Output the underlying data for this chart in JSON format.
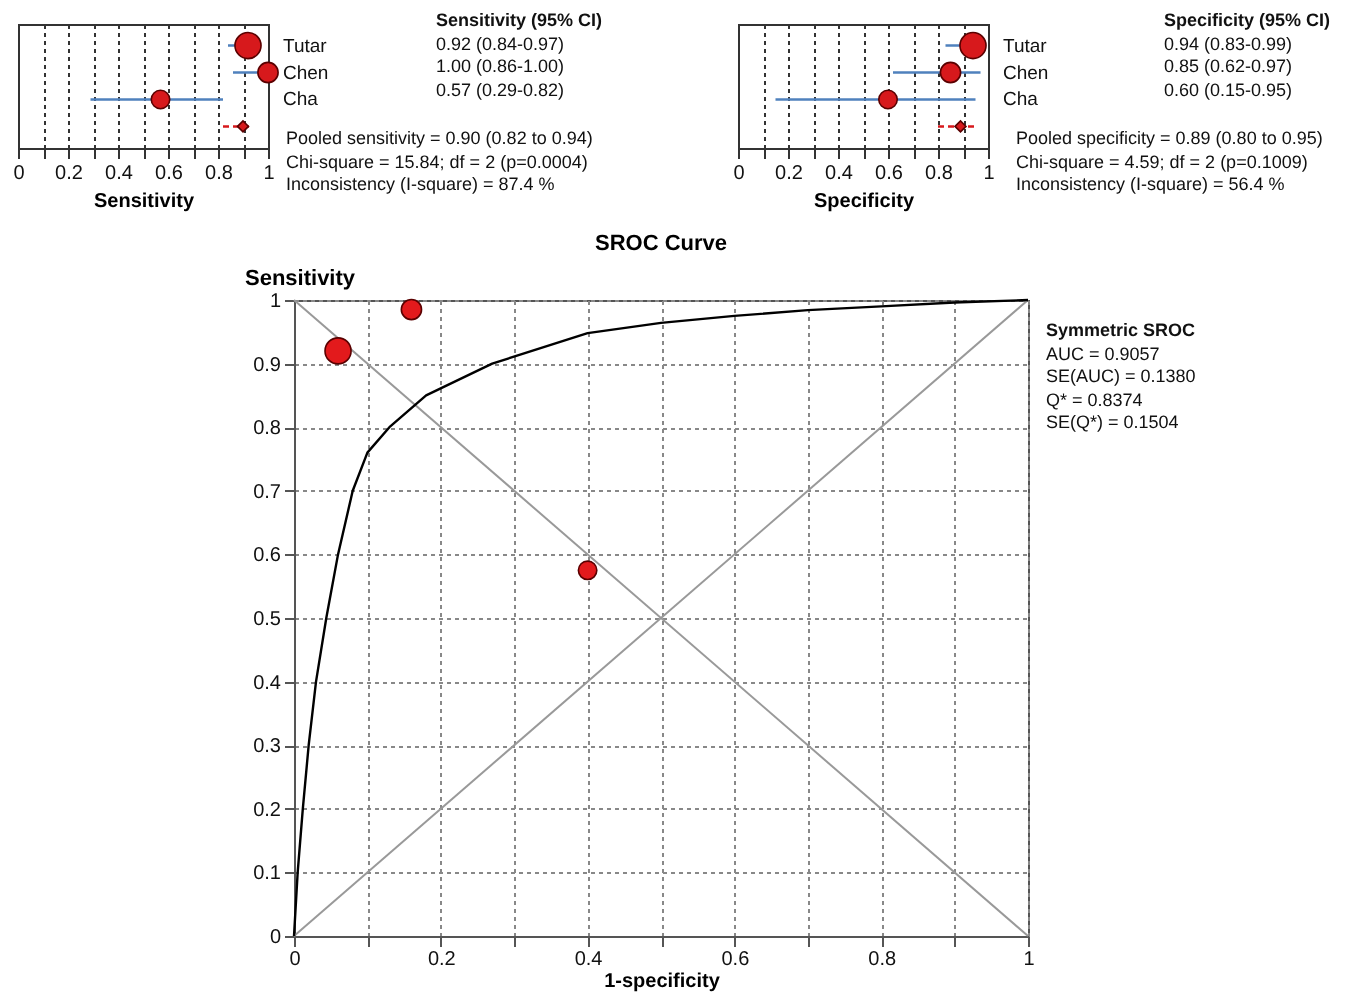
{
  "chart_data": [
    {
      "type": "bubble",
      "orientation": "horizontal",
      "xlabel": "Sensitivity",
      "categories": [
        "Tutar",
        "Chen",
        "Cha",
        null
      ],
      "xlim": [
        0,
        1
      ],
      "xticks": [
        0,
        {
          "value": 0.1,
          "label": null
        },
        0.2,
        {
          "value": 0.3,
          "label": null
        },
        0.4,
        {
          "value": 0.5,
          "label": null
        },
        0.6,
        {
          "value": 0.7,
          "label": null
        },
        0.8,
        {
          "value": 0.9,
          "label": null
        },
        1
      ],
      "grid": "x",
      "tick_labels": "x",
      "series": [
        {
          "color": "#d7191c",
          "values": [
            0.92,
            1.0,
            0.57,
            null
          ],
          "sizes": [
            1,
            0.6,
            0.5,
            null
          ],
          "errors": [
            [
              0.84,
              0.97
            ],
            [
              0.86,
              1.0
            ],
            [
              0.29,
              0.82
            ],
            null
          ]
        },
        {
          "type": "scatter",
          "marker": "diamond",
          "line_style": "dashed",
          "color": "#d7191c",
          "values": [
            null,
            null,
            null,
            0.9
          ],
          "errors": [
            null,
            null,
            null,
            [
              0.82,
              0.94
            ]
          ]
        }
      ],
      "annotations": [
        "Sensitivity (95% CI)",
        "0.92 (0.84-0.97)",
        "1.00 (0.86-1.00)",
        "0.57 (0.29-0.82)",
        "Pooled sensitivity = 0.90 (0.82 to 0.94)",
        "Chi-square = 15.84; df = 2 (p=0.0004)",
        "Inconsistency (I-square) = 87.4 %"
      ]
    },
    {
      "type": "bubble",
      "orientation": "horizontal",
      "xlabel": "Specificity",
      "categories": [
        "Tutar",
        "Chen",
        "Cha",
        null
      ],
      "xlim": [
        0,
        1
      ],
      "xticks": [
        0,
        {
          "value": 0.1,
          "label": null
        },
        0.2,
        {
          "value": 0.3,
          "label": null
        },
        0.4,
        {
          "value": 0.5,
          "label": null
        },
        0.6,
        {
          "value": 0.7,
          "label": null
        },
        0.8,
        {
          "value": 0.9,
          "label": null
        },
        1
      ],
      "grid": "x",
      "tick_labels": "x",
      "series": [
        {
          "color": "#d7191c",
          "values": [
            0.94,
            0.85,
            0.6,
            null
          ],
          "sizes": [
            1,
            0.6,
            0.5,
            null
          ],
          "errors": [
            [
              0.83,
              0.99
            ],
            [
              0.62,
              0.97
            ],
            [
              0.15,
              0.95
            ],
            null
          ]
        },
        {
          "type": "scatter",
          "marker": "diamond",
          "line_style": "dashed",
          "color": "#d7191c",
          "values": [
            null,
            null,
            null,
            0.89
          ],
          "errors": [
            null,
            null,
            null,
            [
              0.8,
              0.95
            ]
          ]
        }
      ],
      "annotations": [
        "Specificity (95% CI)",
        "0.94 (0.83-0.99)",
        "0.85 (0.62-0.97)",
        "0.60 (0.15-0.95)",
        "Pooled specificity = 0.89 (0.80 to 0.95)",
        "Chi-square = 4.59; df = 2 (p=0.1009)",
        "Inconsistency (I-square) = 56.4 %"
      ]
    },
    {
      "type": "line",
      "title": "SROC Curve",
      "xlabel": "1-specificity",
      "ylabel": "Sensitivity",
      "xlim": [
        0,
        1
      ],
      "ylim": [
        0,
        1
      ],
      "xticks": [
        0,
        {
          "value": 0.1,
          "label": null
        },
        0.2,
        {
          "value": 0.3,
          "label": null
        },
        0.4,
        {
          "value": 0.5,
          "label": null
        },
        0.6,
        {
          "value": 0.7,
          "label": null
        },
        0.8,
        {
          "value": 0.9,
          "label": null
        },
        1
      ],
      "yticks": [
        0,
        0.1,
        0.2,
        0.3,
        0.4,
        0.5,
        0.6,
        0.7,
        0.8,
        0.9,
        1
      ],
      "grid": true,
      "series": [
        {
          "color": "#999999",
          "x": [
            0,
            1
          ],
          "values": [
            0,
            1
          ]
        },
        {
          "color": "#999999",
          "x": [
            0,
            1
          ],
          "values": [
            1,
            0
          ]
        },
        {
          "color": "#000000",
          "x": [
            0,
            0.005,
            0.012,
            0.02,
            0.03,
            0.044,
            0.06,
            0.08,
            0.1,
            0.13,
            0.18,
            0.27,
            0.4,
            0.5,
            0.6,
            0.7,
            0.8,
            0.9,
            1
          ],
          "values": [
            0,
            0.1,
            0.2,
            0.3,
            0.4,
            0.5,
            0.6,
            0.7,
            0.76,
            0.8,
            0.85,
            0.9,
            0.948,
            0.964,
            0.975,
            0.984,
            0.99,
            0.996,
            1
          ]
        },
        {
          "type": "bubble",
          "color": "#e31a1c",
          "x": [
            0.06,
            0.16,
            0.4
          ],
          "values": [
            0.92,
            0.985,
            0.575
          ],
          "sizes": [
            1,
            0.6,
            0.5
          ]
        }
      ],
      "annotations": [
        "Symmetric SROC",
        "AUC = 0.9057",
        "SE(AUC) = 0.1380",
        "Q* = 0.8374",
        "SE(Q*) = 0.1504"
      ]
    }
  ]
}
